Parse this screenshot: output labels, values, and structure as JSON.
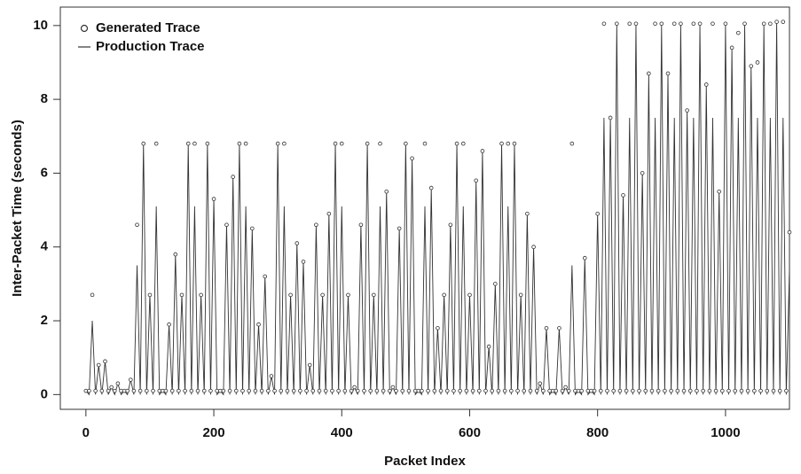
{
  "chart_data": {
    "type": "line",
    "x_label": "Packet Index",
    "y_label": "Inter-Packet Time (seconds)",
    "xlim": [
      -40,
      1100
    ],
    "ylim": [
      -0.4,
      10.5
    ],
    "xticks": [
      0,
      200,
      400,
      600,
      800,
      1000
    ],
    "yticks": [
      0,
      2,
      4,
      6,
      8,
      10
    ],
    "legend": "top-left",
    "x": [
      0,
      5,
      10,
      15,
      20,
      25,
      30,
      35,
      40,
      45,
      50,
      55,
      60,
      65,
      70,
      75,
      80,
      85,
      90,
      95,
      100,
      105,
      110,
      115,
      120,
      125,
      130,
      135,
      140,
      145,
      150,
      155,
      160,
      165,
      170,
      175,
      180,
      185,
      190,
      195,
      200,
      205,
      210,
      215,
      220,
      225,
      230,
      235,
      240,
      245,
      250,
      255,
      260,
      265,
      270,
      275,
      280,
      285,
      290,
      295,
      300,
      305,
      310,
      315,
      320,
      325,
      330,
      335,
      340,
      345,
      350,
      355,
      360,
      365,
      370,
      375,
      380,
      385,
      390,
      395,
      400,
      405,
      410,
      415,
      420,
      425,
      430,
      435,
      440,
      445,
      450,
      455,
      460,
      465,
      470,
      475,
      480,
      485,
      490,
      495,
      500,
      505,
      510,
      515,
      520,
      525,
      530,
      535,
      540,
      545,
      550,
      555,
      560,
      565,
      570,
      575,
      580,
      585,
      590,
      595,
      600,
      605,
      610,
      615,
      620,
      625,
      630,
      635,
      640,
      645,
      650,
      655,
      660,
      665,
      670,
      675,
      680,
      685,
      690,
      695,
      700,
      705,
      710,
      715,
      720,
      725,
      730,
      735,
      740,
      745,
      750,
      755,
      760,
      765,
      770,
      775,
      780,
      785,
      790,
      795,
      800,
      805,
      810,
      815,
      820,
      825,
      830,
      835,
      840,
      845,
      850,
      855,
      860,
      865,
      870,
      875,
      880,
      885,
      890,
      895,
      900,
      905,
      910,
      915,
      920,
      925,
      930,
      935,
      940,
      945,
      950,
      955,
      960,
      965,
      970,
      975,
      980,
      985,
      990,
      995,
      1000,
      1005,
      1010,
      1015,
      1020,
      1025,
      1030,
      1035,
      1040,
      1045,
      1050,
      1055,
      1060,
      1065,
      1070,
      1075,
      1080,
      1085,
      1090,
      1095,
      1100
    ],
    "series": [
      {
        "name": "Generated Trace",
        "style": "points",
        "color": "#333333",
        "values": [
          0.1,
          0.1,
          2.7,
          0.1,
          0.8,
          0.1,
          0.9,
          0.1,
          0.2,
          0.1,
          0.3,
          0.1,
          0.1,
          0.1,
          0.4,
          0.1,
          4.6,
          0.1,
          6.8,
          0.1,
          2.7,
          0.1,
          6.8,
          0.1,
          0.1,
          0.1,
          1.9,
          0.1,
          3.8,
          0.1,
          2.7,
          0.1,
          6.8,
          0.1,
          6.8,
          0.1,
          2.7,
          0.1,
          6.8,
          0.1,
          5.3,
          0.1,
          0.1,
          0.1,
          4.6,
          0.1,
          5.9,
          0.1,
          6.8,
          0.1,
          6.8,
          0.1,
          4.5,
          0.1,
          1.9,
          0.1,
          3.2,
          0.1,
          0.5,
          0.1,
          6.8,
          0.1,
          6.8,
          0.1,
          2.7,
          0.1,
          4.1,
          0.1,
          3.6,
          0.1,
          0.8,
          0.1,
          4.6,
          0.1,
          2.7,
          0.1,
          4.9,
          0.1,
          6.8,
          0.1,
          6.8,
          0.1,
          2.7,
          0.1,
          0.2,
          0.1,
          4.6,
          0.1,
          6.8,
          0.1,
          2.7,
          0.1,
          6.8,
          0.1,
          5.5,
          0.1,
          0.2,
          0.1,
          4.5,
          0.1,
          6.8,
          0.1,
          6.4,
          0.1,
          0.1,
          0.1,
          6.8,
          0.1,
          5.6,
          0.1,
          1.8,
          0.1,
          2.7,
          0.1,
          4.6,
          0.1,
          6.8,
          0.1,
          6.8,
          0.1,
          2.7,
          0.1,
          5.8,
          0.1,
          6.6,
          0.1,
          1.3,
          0.1,
          3.0,
          0.1,
          6.8,
          0.1,
          6.8,
          0.1,
          6.8,
          0.1,
          2.7,
          0.1,
          4.9,
          0.1,
          4.0,
          0.1,
          0.3,
          0.1,
          1.8,
          0.1,
          0.1,
          0.1,
          1.8,
          0.1,
          0.2,
          0.1,
          6.8,
          0.1,
          0.1,
          0.1,
          3.7,
          0.1,
          0.1,
          0.1,
          4.9,
          0.1,
          10.05,
          0.1,
          7.5,
          0.1,
          10.05,
          0.1,
          5.4,
          0.1,
          10.05,
          0.1,
          10.05,
          0.1,
          6.0,
          0.1,
          8.7,
          0.1,
          10.05,
          0.1,
          10.05,
          0.1,
          8.7,
          0.1,
          10.05,
          0.1,
          10.05,
          0.1,
          7.7,
          0.1,
          10.05,
          0.1,
          10.05,
          0.1,
          8.4,
          0.1,
          10.05,
          0.1,
          5.5,
          0.1,
          10.05,
          0.1,
          9.4,
          0.1,
          9.8,
          0.1,
          10.05,
          0.1,
          8.9,
          0.1,
          9.0,
          0.1,
          10.05,
          0.1,
          10.05,
          0.1,
          10.1,
          0.1,
          10.1,
          0.1,
          4.4
        ]
      },
      {
        "name": "Production Trace",
        "style": "line",
        "color": "#333333",
        "values": [
          0.1,
          0,
          2.0,
          0,
          0.8,
          0,
          0.9,
          0,
          0.2,
          0,
          0.3,
          0,
          0.1,
          0,
          0.4,
          0,
          3.5,
          0,
          6.8,
          0,
          2.7,
          0,
          5.1,
          0,
          0.1,
          0,
          1.9,
          0,
          3.8,
          0,
          2.7,
          0,
          6.8,
          0,
          5.1,
          0,
          2.7,
          0,
          6.8,
          0,
          5.3,
          0,
          0.1,
          0,
          4.6,
          0,
          5.9,
          0,
          6.8,
          0,
          5.1,
          0,
          4.5,
          0,
          1.9,
          0,
          3.2,
          0,
          0.5,
          0,
          6.8,
          0,
          5.1,
          0,
          2.7,
          0,
          4.1,
          0,
          3.6,
          0,
          0.8,
          0,
          4.6,
          0,
          2.7,
          0,
          4.9,
          0,
          6.8,
          0,
          5.1,
          0,
          2.7,
          0,
          0.2,
          0,
          4.6,
          0,
          6.8,
          0,
          2.7,
          0,
          5.1,
          0,
          5.5,
          0,
          0.2,
          0,
          4.5,
          0,
          6.8,
          0,
          6.4,
          0,
          0.1,
          0,
          5.1,
          0,
          5.6,
          0,
          1.8,
          0,
          2.7,
          0,
          4.6,
          0,
          6.8,
          0,
          5.1,
          0,
          2.7,
          0,
          5.8,
          0,
          6.6,
          0,
          1.3,
          0,
          3.0,
          0,
          6.8,
          0,
          5.1,
          0,
          6.8,
          0,
          2.7,
          0,
          4.9,
          0,
          4.0,
          0,
          0.3,
          0,
          1.8,
          0,
          0.1,
          0,
          1.8,
          0,
          0.2,
          0,
          3.5,
          0,
          0.1,
          0,
          3.7,
          0,
          0.1,
          0,
          4.9,
          0,
          7.5,
          0,
          7.5,
          0,
          10.05,
          0,
          5.4,
          0,
          7.5,
          0,
          10.05,
          0,
          6.0,
          0,
          8.7,
          0,
          7.5,
          0,
          10.05,
          0,
          8.7,
          0,
          7.5,
          0,
          10.05,
          0,
          7.7,
          0,
          7.5,
          0,
          10.05,
          0,
          8.4,
          0,
          7.5,
          0,
          5.5,
          0,
          10.05,
          0,
          9.4,
          0,
          7.5,
          0,
          10.05,
          0,
          8.9,
          0,
          7.5,
          0,
          10.05,
          0,
          7.5,
          0,
          10.1,
          0,
          7.5,
          0,
          3.4
        ]
      }
    ]
  }
}
